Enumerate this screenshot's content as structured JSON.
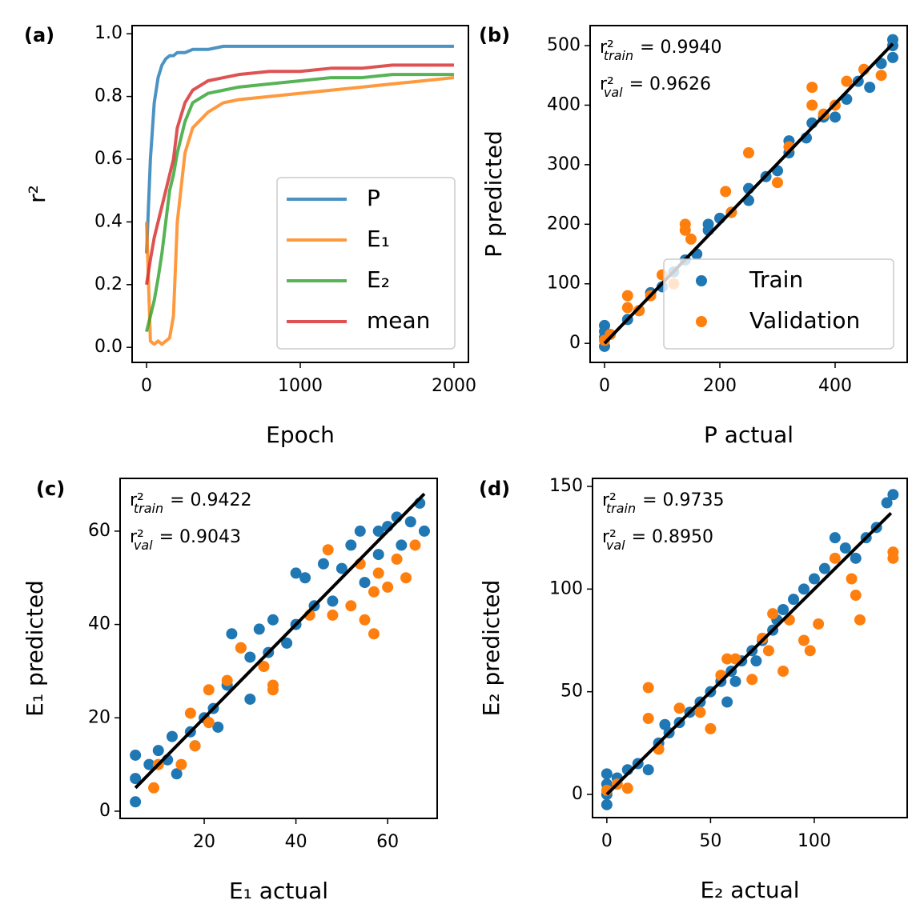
{
  "chart_data": [
    {
      "type": "line",
      "panel_label": "(a)",
      "x_label": "Epoch",
      "y_label": "r²",
      "xlim": [
        -94,
        2094
      ],
      "ylim": [
        -0.048,
        1.026
      ],
      "xticks": [
        0,
        1000,
        2000
      ],
      "yticks": [
        {
          "value": 0,
          "label": "0.0"
        },
        0.2,
        0.4,
        0.6,
        0.8,
        {
          "value": 1,
          "label": "1.0"
        }
      ],
      "legend": "lower right",
      "x": [
        0,
        25,
        50,
        75,
        100,
        125,
        150,
        175,
        200,
        250,
        300,
        400,
        500,
        600,
        800,
        1000,
        1200,
        1400,
        1600,
        1800,
        2000
      ],
      "series": [
        {
          "name": "P",
          "color": "#1f77b4",
          "values": [
            0.3,
            0.6,
            0.78,
            0.86,
            0.9,
            0.92,
            0.93,
            0.93,
            0.94,
            0.94,
            0.95,
            0.95,
            0.96,
            0.96,
            0.96,
            0.96,
            0.96,
            0.96,
            0.96,
            0.96,
            0.96
          ]
        },
        {
          "name": "E₁",
          "color": "#ff7f0e",
          "values": [
            0.4,
            0.02,
            0.01,
            0.02,
            0.01,
            0.02,
            0.03,
            0.1,
            0.4,
            0.62,
            0.7,
            0.75,
            0.78,
            0.79,
            0.8,
            0.81,
            0.82,
            0.83,
            0.84,
            0.85,
            0.86
          ]
        },
        {
          "name": "E₂",
          "color": "#2ca02c",
          "values": [
            0.05,
            0.1,
            0.15,
            0.22,
            0.3,
            0.4,
            0.5,
            0.55,
            0.62,
            0.72,
            0.78,
            0.81,
            0.82,
            0.83,
            0.84,
            0.85,
            0.86,
            0.86,
            0.87,
            0.87,
            0.87
          ]
        },
        {
          "name": "mean",
          "color": "#d62728",
          "values": [
            0.2,
            0.28,
            0.35,
            0.4,
            0.45,
            0.5,
            0.55,
            0.6,
            0.7,
            0.78,
            0.82,
            0.85,
            0.86,
            0.87,
            0.88,
            0.88,
            0.89,
            0.89,
            0.9,
            0.9,
            0.9
          ]
        }
      ]
    },
    {
      "type": "scatter",
      "panel_label": "(b)",
      "x_label": "P actual",
      "y_label": "P predicted",
      "xlim": [
        -25,
        525
      ],
      "ylim": [
        -32,
        533.6
      ],
      "xticks": [
        0,
        200,
        400
      ],
      "yticks": [
        0,
        100,
        200,
        300,
        400,
        500
      ],
      "legend": "lower right",
      "annotations": [
        {
          "label": "r²",
          "sub": "train",
          "text": "= 0.9940"
        },
        {
          "label": "r²",
          "sub": "val",
          "text": "= 0.9626"
        }
      ],
      "series": [
        {
          "name": "Train",
          "color": "#1f77b4",
          "x": [
            0,
            0,
            0,
            0,
            40,
            60,
            80,
            100,
            120,
            140,
            160,
            180,
            180,
            200,
            220,
            250,
            250,
            280,
            300,
            320,
            320,
            350,
            360,
            380,
            400,
            420,
            440,
            460,
            480,
            500,
            500,
            500
          ],
          "values": [
            -5,
            10,
            30,
            20,
            40,
            55,
            85,
            95,
            120,
            140,
            150,
            190,
            200,
            210,
            220,
            240,
            260,
            280,
            290,
            320,
            340,
            345,
            370,
            380,
            380,
            410,
            440,
            430,
            470,
            500,
            480,
            510
          ]
        },
        {
          "name": "Validation",
          "color": "#ff7f0e",
          "x": [
            0,
            10,
            40,
            40,
            60,
            80,
            100,
            120,
            140,
            140,
            150,
            210,
            220,
            250,
            300,
            320,
            360,
            360,
            380,
            400,
            420,
            450,
            480
          ],
          "values": [
            5,
            15,
            60,
            80,
            55,
            80,
            115,
            100,
            190,
            200,
            175,
            255,
            220,
            320,
            270,
            330,
            430,
            400,
            385,
            400,
            440,
            460,
            450
          ]
        }
      ],
      "fit_line": {
        "color": "#000000",
        "x": [
          0,
          500
        ],
        "values": [
          0,
          503
        ]
      }
    },
    {
      "type": "scatter",
      "panel_label": "(c)",
      "x_label": "E₁ actual",
      "y_label": "E₁ predicted",
      "xlim": [
        1.66,
        70.8
      ],
      "ylim": [
        -1.55,
        71.3
      ],
      "xticks": [
        20,
        40,
        60
      ],
      "yticks": [
        0,
        20,
        40,
        60
      ],
      "annotations": [
        {
          "label": "r²",
          "sub": "train",
          "text": "= 0.9422"
        },
        {
          "label": "r²",
          "sub": "val",
          "text": "= 0.9043"
        }
      ],
      "series": [
        {
          "color": "#1f77b4",
          "x": [
            5,
            5,
            5,
            8,
            10,
            12,
            13,
            14,
            17,
            18,
            20,
            22,
            23,
            25,
            26,
            28,
            30,
            30,
            32,
            34,
            35,
            38,
            40,
            40,
            42,
            44,
            46,
            48,
            50,
            52,
            54,
            55,
            58,
            58,
            60,
            62,
            63,
            65,
            67,
            68
          ],
          "values": [
            7,
            12,
            2,
            10,
            13,
            11,
            16,
            8,
            17,
            14,
            20,
            22,
            18,
            27,
            38,
            35,
            24,
            33,
            39,
            34,
            41,
            36,
            51,
            40,
            50,
            44,
            53,
            45,
            52,
            57,
            60,
            49,
            60,
            55,
            61,
            63,
            57,
            62,
            66,
            60
          ]
        },
        {
          "color": "#ff7f0e",
          "x": [
            9,
            10,
            15,
            17,
            18,
            21,
            21,
            25,
            28,
            33,
            35,
            35,
            43,
            47,
            48,
            52,
            54,
            55,
            57,
            57,
            58,
            60,
            62,
            64,
            66
          ],
          "values": [
            5,
            10,
            10,
            21,
            14,
            19,
            26,
            28,
            35,
            31,
            26,
            27,
            42,
            56,
            42,
            44,
            53,
            41,
            47,
            38,
            51,
            48,
            54,
            50,
            57
          ]
        }
      ],
      "fit_line": {
        "color": "#000000",
        "x": [
          5,
          68
        ],
        "values": [
          5,
          68
        ]
      }
    },
    {
      "type": "scatter",
      "panel_label": "(d)",
      "x_label": "E₂ actual",
      "y_label": "E₂ predicted",
      "xlim": [
        -6.9,
        144.8
      ],
      "ylim": [
        -11.3,
        153.9
      ],
      "xticks": [
        0,
        50,
        100
      ],
      "yticks": [
        0,
        50,
        100,
        150
      ],
      "annotations": [
        {
          "label": "r²",
          "sub": "train",
          "text": "= 0.9735"
        },
        {
          "label": "r²",
          "sub": "val",
          "text": "= 0.8950"
        }
      ],
      "series": [
        {
          "color": "#1f77b4",
          "x": [
            0,
            0,
            0,
            0,
            5,
            10,
            15,
            20,
            25,
            28,
            30,
            35,
            40,
            45,
            50,
            55,
            58,
            60,
            62,
            65,
            70,
            72,
            75,
            80,
            82,
            85,
            90,
            95,
            100,
            105,
            110,
            115,
            120,
            125,
            130,
            135,
            138
          ],
          "values": [
            -5,
            0,
            5,
            10,
            8,
            12,
            15,
            12,
            25,
            34,
            30,
            35,
            40,
            45,
            50,
            55,
            45,
            60,
            55,
            65,
            70,
            65,
            75,
            80,
            85,
            90,
            95,
            100,
            105,
            110,
            125,
            120,
            115,
            125,
            130,
            142,
            146
          ]
        },
        {
          "color": "#ff7f0e",
          "x": [
            0,
            5,
            10,
            20,
            20,
            25,
            35,
            45,
            50,
            55,
            58,
            62,
            70,
            75,
            78,
            80,
            85,
            88,
            95,
            98,
            102,
            110,
            118,
            120,
            122,
            138,
            138
          ],
          "values": [
            2,
            5,
            3,
            52,
            37,
            22,
            42,
            40,
            32,
            58,
            66,
            66,
            56,
            76,
            70,
            88,
            60,
            85,
            75,
            70,
            83,
            115,
            105,
            97,
            85,
            118,
            115
          ]
        }
      ],
      "fit_line": {
        "color": "#000000",
        "x": [
          0,
          137
        ],
        "values": [
          0,
          137
        ]
      }
    }
  ]
}
